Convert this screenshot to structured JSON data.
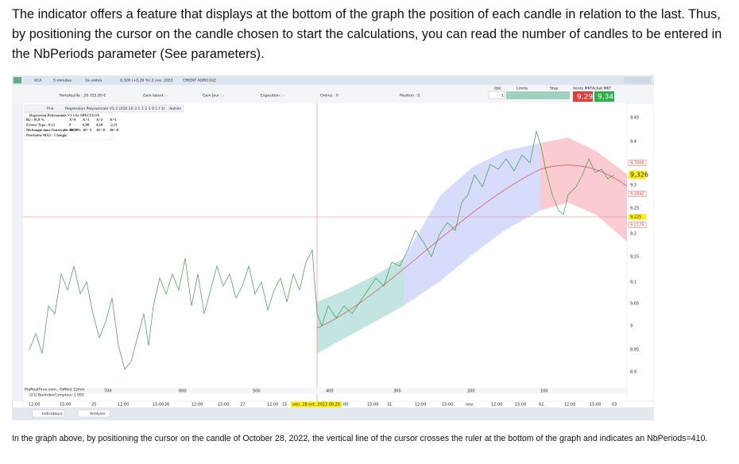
{
  "intro": "The indicator offers a feature that displays at the bottom of the graph the position of each candle in relation to the last. Thus, by positioning the cursor on the candle chosen to start the calculations, you can read the number of candles to be entered in the NbPeriods parameter (See parameters).",
  "screenshot": {
    "toolbar": {
      "ticker": "ACA",
      "timeframe": "5 minutes",
      "units": "1k unités",
      "quote": "9,326 (+0,26 %) 2 nov. 2022",
      "name": "CREDIT AGRICOLE"
    },
    "account": {
      "portfolio": "Portefeuille : 20 725,00 €",
      "latent_gain": "Gain latent : -",
      "day_gain": "Gain Jour : -",
      "exposure": "Exposition : -",
      "orders": "Ordres : 0",
      "position": "Position : 0",
      "qty": "Qté",
      "qty_value": "1",
      "limit": "Limite",
      "stop": "Stop",
      "sell_label": "Vente MKT",
      "buy_label": "Achat MKT",
      "sell": "9,29",
      "buy": "9,34"
    },
    "legend": {
      "price": "Prix",
      "indicator": "Regression Polynomiale V1.1 (410 20 3 1 1 2 1 0 1 f 1)",
      "others": "Autres",
      "title": "Regression Polynomiale V1.1 by SPECULOS",
      "stats": [
        "R2 : 91,8 %",
        "Erreur Type : 0,13",
        "Nb bougie dans l'intervalle :92,9 %",
        "Prochaine MAJ : 1 bougie"
      ],
      "columns": [
        "X^0",
        "X^1",
        "X^2",
        "X^3"
      ],
      "coefficients": [
        "9",
        "6,88",
        "4,18",
        "-2,13"
      ],
      "scales": [
        "10^-0",
        "10^-3",
        "10^-6",
        "10^-8"
      ]
    },
    "price_axis": [
      "9,45",
      "9,4",
      "9,3509",
      "9,326",
      "9,3",
      "9,2842",
      "9,25",
      "9,225",
      "9,2175",
      "9,2",
      "9,15",
      "9,1",
      "9,05",
      "9",
      "8,95",
      "8,9"
    ],
    "ruler": [
      "700",
      "600",
      "500",
      "400",
      "300",
      "200",
      "100"
    ],
    "time_axis": [
      "12:00",
      "15:00",
      "25",
      "12:00",
      "15:00",
      "26",
      "12:00",
      "15:00",
      "27",
      "12:00",
      "15",
      "ven. 28 oct. 2022 09:20",
      "00",
      "15:00",
      "31",
      "12:00",
      "15:00",
      "nov.",
      "12:00",
      "15:00",
      "02",
      "12:00",
      "15:00",
      "03"
    ],
    "footer": {
      "source": "ProRealTime.com - Différé 15min",
      "indicator": "(21) BarIndexCompteur 1 092",
      "indicators_button": "Indicateurs",
      "analyse_button": "Analyser"
    }
  },
  "caption": "In the graph above, by positioning the cursor on the candle of October 28, 2022, the vertical line of the cursor crosses the ruler at the bottom of the graph and indicates an NbPeriods=410."
}
